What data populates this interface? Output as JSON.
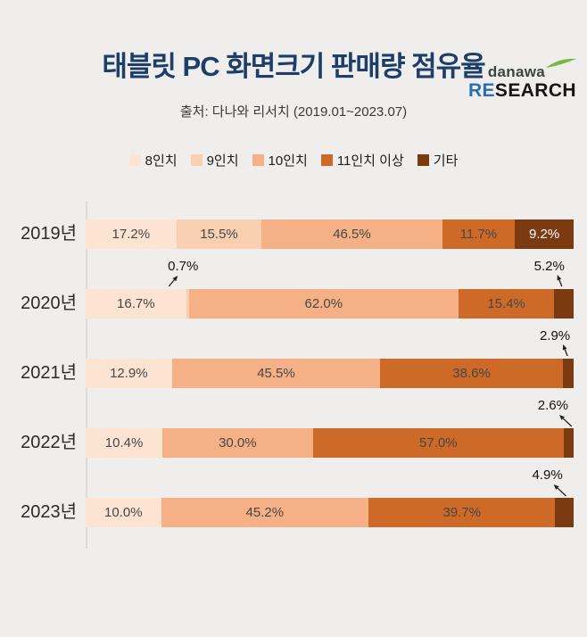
{
  "logo": {
    "brand": "danawa",
    "re": "RE",
    "search": "SEARCH"
  },
  "header": {
    "title": "태블릿 PC 화면크기 판매량 점유율",
    "source": "출처: 다나와 리서치 (2019.01~2023.07)"
  },
  "colors": {
    "background": "#efeeec",
    "title": "#1d3e68",
    "logo_green": "#79b742",
    "logo_blue": "#2a6fb5",
    "axis": "#dcdbd8"
  },
  "chart_data": {
    "type": "bar",
    "stacked": true,
    "orientation": "horizontal",
    "unit": "%",
    "xlim": [
      0,
      100
    ],
    "title": "태블릿 PC 화면크기 판매량 점유율",
    "categories": [
      "2019년",
      "2020년",
      "2021년",
      "2022년",
      "2023년"
    ],
    "legend": [
      {
        "label": "8인치",
        "color": "#fce3d2"
      },
      {
        "label": "9인치",
        "color": "#f8cfb1"
      },
      {
        "label": "10인치",
        "color": "#f5b185"
      },
      {
        "label": "11인치 이상",
        "color": "#cd6a28"
      },
      {
        "label": "기타",
        "color": "#7b3a10"
      }
    ],
    "series": [
      {
        "name": "8인치",
        "values": [
          17.2,
          16.7,
          12.9,
          10.4,
          10.0
        ]
      },
      {
        "name": "9인치",
        "values": [
          15.5,
          0.7,
          0,
          0,
          0
        ]
      },
      {
        "name": "10인치",
        "values": [
          46.5,
          62.0,
          45.5,
          30.0,
          45.2
        ]
      },
      {
        "name": "11인치 이상",
        "values": [
          11.7,
          15.4,
          38.6,
          57.0,
          39.7
        ]
      },
      {
        "name": "기타",
        "values": [
          9.2,
          5.2,
          2.9,
          2.6,
          4.9
        ]
      }
    ],
    "callouts": [
      {
        "category": "2020년",
        "series": "9인치",
        "text": "0.7%",
        "lean": "right"
      },
      {
        "category": "2020년",
        "series": "기타",
        "text": "5.2%",
        "lean": "up"
      },
      {
        "category": "2021년",
        "series": "기타",
        "text": "2.9%",
        "lean": "up"
      },
      {
        "category": "2022년",
        "series": "기타",
        "text": "2.6%",
        "lean": "left"
      },
      {
        "category": "2023년",
        "series": "기타",
        "text": "4.9%",
        "lean": "left"
      }
    ]
  }
}
